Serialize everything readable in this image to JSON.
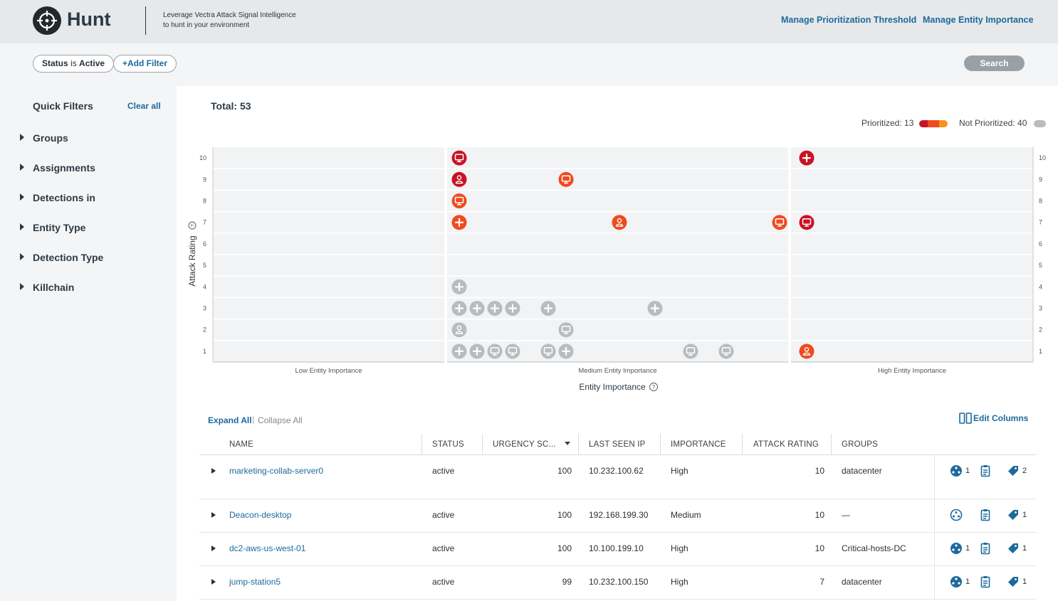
{
  "header": {
    "title": "Hunt",
    "tagline_line1": "Leverage Vectra Attack Signal Intelligence",
    "tagline_line2": "to hunt in your environment",
    "link_threshold": "Manage Prioritization Threshold",
    "link_importance": "Manage Entity Importance"
  },
  "filters": {
    "status_key": "Status",
    "status_is": "is",
    "status_value": "Active",
    "add_filter": "+Add Filter",
    "search": "Search"
  },
  "sidebar": {
    "title": "Quick Filters",
    "clear_all": "Clear all",
    "items": [
      "Groups",
      "Assignments",
      "Detections in",
      "Entity Type",
      "Detection Type",
      "Killchain"
    ]
  },
  "summary": {
    "total": "Total: 53",
    "prioritized": "Prioritized: 13",
    "not_prioritized": "Not Prioritized: 40"
  },
  "colors": {
    "critical": "#c91224",
    "high": "#ee4b1f",
    "medium": "#f6931e",
    "not_prioritized": "#b8bcbf",
    "link": "#1d6a9c"
  },
  "chart_data": {
    "type": "scatter",
    "xlabel": "Entity Importance",
    "ylabel": "Attack Rating",
    "ylim": [
      1,
      10
    ],
    "yticks": [
      10,
      9,
      8,
      7,
      6,
      5,
      4,
      3,
      2,
      1
    ],
    "columns": [
      "Low Entity Importance",
      "Medium Entity Importance",
      "High Entity Importance"
    ],
    "points": [
      {
        "col": 1,
        "pos": 0,
        "y": 10,
        "icon": "host",
        "color": "critical"
      },
      {
        "col": 1,
        "pos": 0,
        "y": 9,
        "icon": "account",
        "color": "critical"
      },
      {
        "col": 1,
        "pos": 6,
        "y": 9,
        "icon": "host",
        "color": "high"
      },
      {
        "col": 1,
        "pos": 0,
        "y": 8,
        "icon": "host",
        "color": "high"
      },
      {
        "col": 1,
        "pos": 0,
        "y": 7,
        "icon": "plus",
        "color": "high"
      },
      {
        "col": 1,
        "pos": 9,
        "y": 7,
        "icon": "account",
        "color": "high"
      },
      {
        "col": 1,
        "pos": 18,
        "y": 7,
        "icon": "host",
        "color": "high"
      },
      {
        "col": 1,
        "pos": 0,
        "y": 4,
        "icon": "plus",
        "color": "not_prioritized"
      },
      {
        "col": 1,
        "pos": 0,
        "y": 3,
        "icon": "plus",
        "color": "not_prioritized"
      },
      {
        "col": 1,
        "pos": 1,
        "y": 3,
        "icon": "plus",
        "color": "not_prioritized"
      },
      {
        "col": 1,
        "pos": 2,
        "y": 3,
        "icon": "plus",
        "color": "not_prioritized"
      },
      {
        "col": 1,
        "pos": 3,
        "y": 3,
        "icon": "plus",
        "color": "not_prioritized"
      },
      {
        "col": 1,
        "pos": 5,
        "y": 3,
        "icon": "plus",
        "color": "not_prioritized"
      },
      {
        "col": 1,
        "pos": 11,
        "y": 3,
        "icon": "plus",
        "color": "not_prioritized"
      },
      {
        "col": 1,
        "pos": 0,
        "y": 2,
        "icon": "account",
        "color": "not_prioritized"
      },
      {
        "col": 1,
        "pos": 6,
        "y": 2,
        "icon": "host",
        "color": "not_prioritized"
      },
      {
        "col": 1,
        "pos": 0,
        "y": 1,
        "icon": "plus",
        "color": "not_prioritized"
      },
      {
        "col": 1,
        "pos": 1,
        "y": 1,
        "icon": "plus",
        "color": "not_prioritized"
      },
      {
        "col": 1,
        "pos": 2,
        "y": 1,
        "icon": "host",
        "color": "not_prioritized"
      },
      {
        "col": 1,
        "pos": 3,
        "y": 1,
        "icon": "host",
        "color": "not_prioritized"
      },
      {
        "col": 1,
        "pos": 5,
        "y": 1,
        "icon": "host",
        "color": "not_prioritized"
      },
      {
        "col": 1,
        "pos": 6,
        "y": 1,
        "icon": "plus",
        "color": "not_prioritized"
      },
      {
        "col": 1,
        "pos": 13,
        "y": 1,
        "icon": "host",
        "color": "not_prioritized"
      },
      {
        "col": 1,
        "pos": 15,
        "y": 1,
        "icon": "host",
        "color": "not_prioritized"
      },
      {
        "col": 2,
        "pos": 0,
        "y": 10,
        "icon": "plus",
        "color": "critical"
      },
      {
        "col": 2,
        "pos": 0,
        "y": 7,
        "icon": "host",
        "color": "critical"
      },
      {
        "col": 2,
        "pos": 0,
        "y": 1,
        "icon": "account",
        "color": "high"
      }
    ]
  },
  "table": {
    "expand_all": "Expand All",
    "separator": "|",
    "collapse_all": "Collapse All",
    "edit_columns": "Edit Columns",
    "columns": [
      "NAME",
      "STATUS",
      "URGENCY SC...",
      "LAST SEEN IP",
      "IMPORTANCE",
      "ATTACK RATING",
      "GROUPS"
    ],
    "rows": [
      {
        "name": "marketing-collab-server0",
        "status": "active",
        "urgency": "100",
        "ip": "10.232.100.62",
        "importance": "High",
        "attack": "10",
        "groups": "datacenter",
        "detections": "1",
        "tags": "2"
      },
      {
        "name": "Deacon-desktop",
        "status": "active",
        "urgency": "100",
        "ip": "192.168.199.30",
        "importance": "Medium",
        "attack": "10",
        "groups": "—",
        "detections": "",
        "tags": "1"
      },
      {
        "name": "dc2-aws-us-west-01",
        "status": "active",
        "urgency": "100",
        "ip": "10.100.199.10",
        "importance": "High",
        "attack": "10",
        "groups": "Critical-hosts-DC",
        "detections": "1",
        "tags": "1"
      },
      {
        "name": "jump-station5",
        "status": "active",
        "urgency": "99",
        "ip": "10.232.100.150",
        "importance": "High",
        "attack": "7",
        "groups": "datacenter",
        "detections": "1",
        "tags": "1"
      }
    ]
  }
}
